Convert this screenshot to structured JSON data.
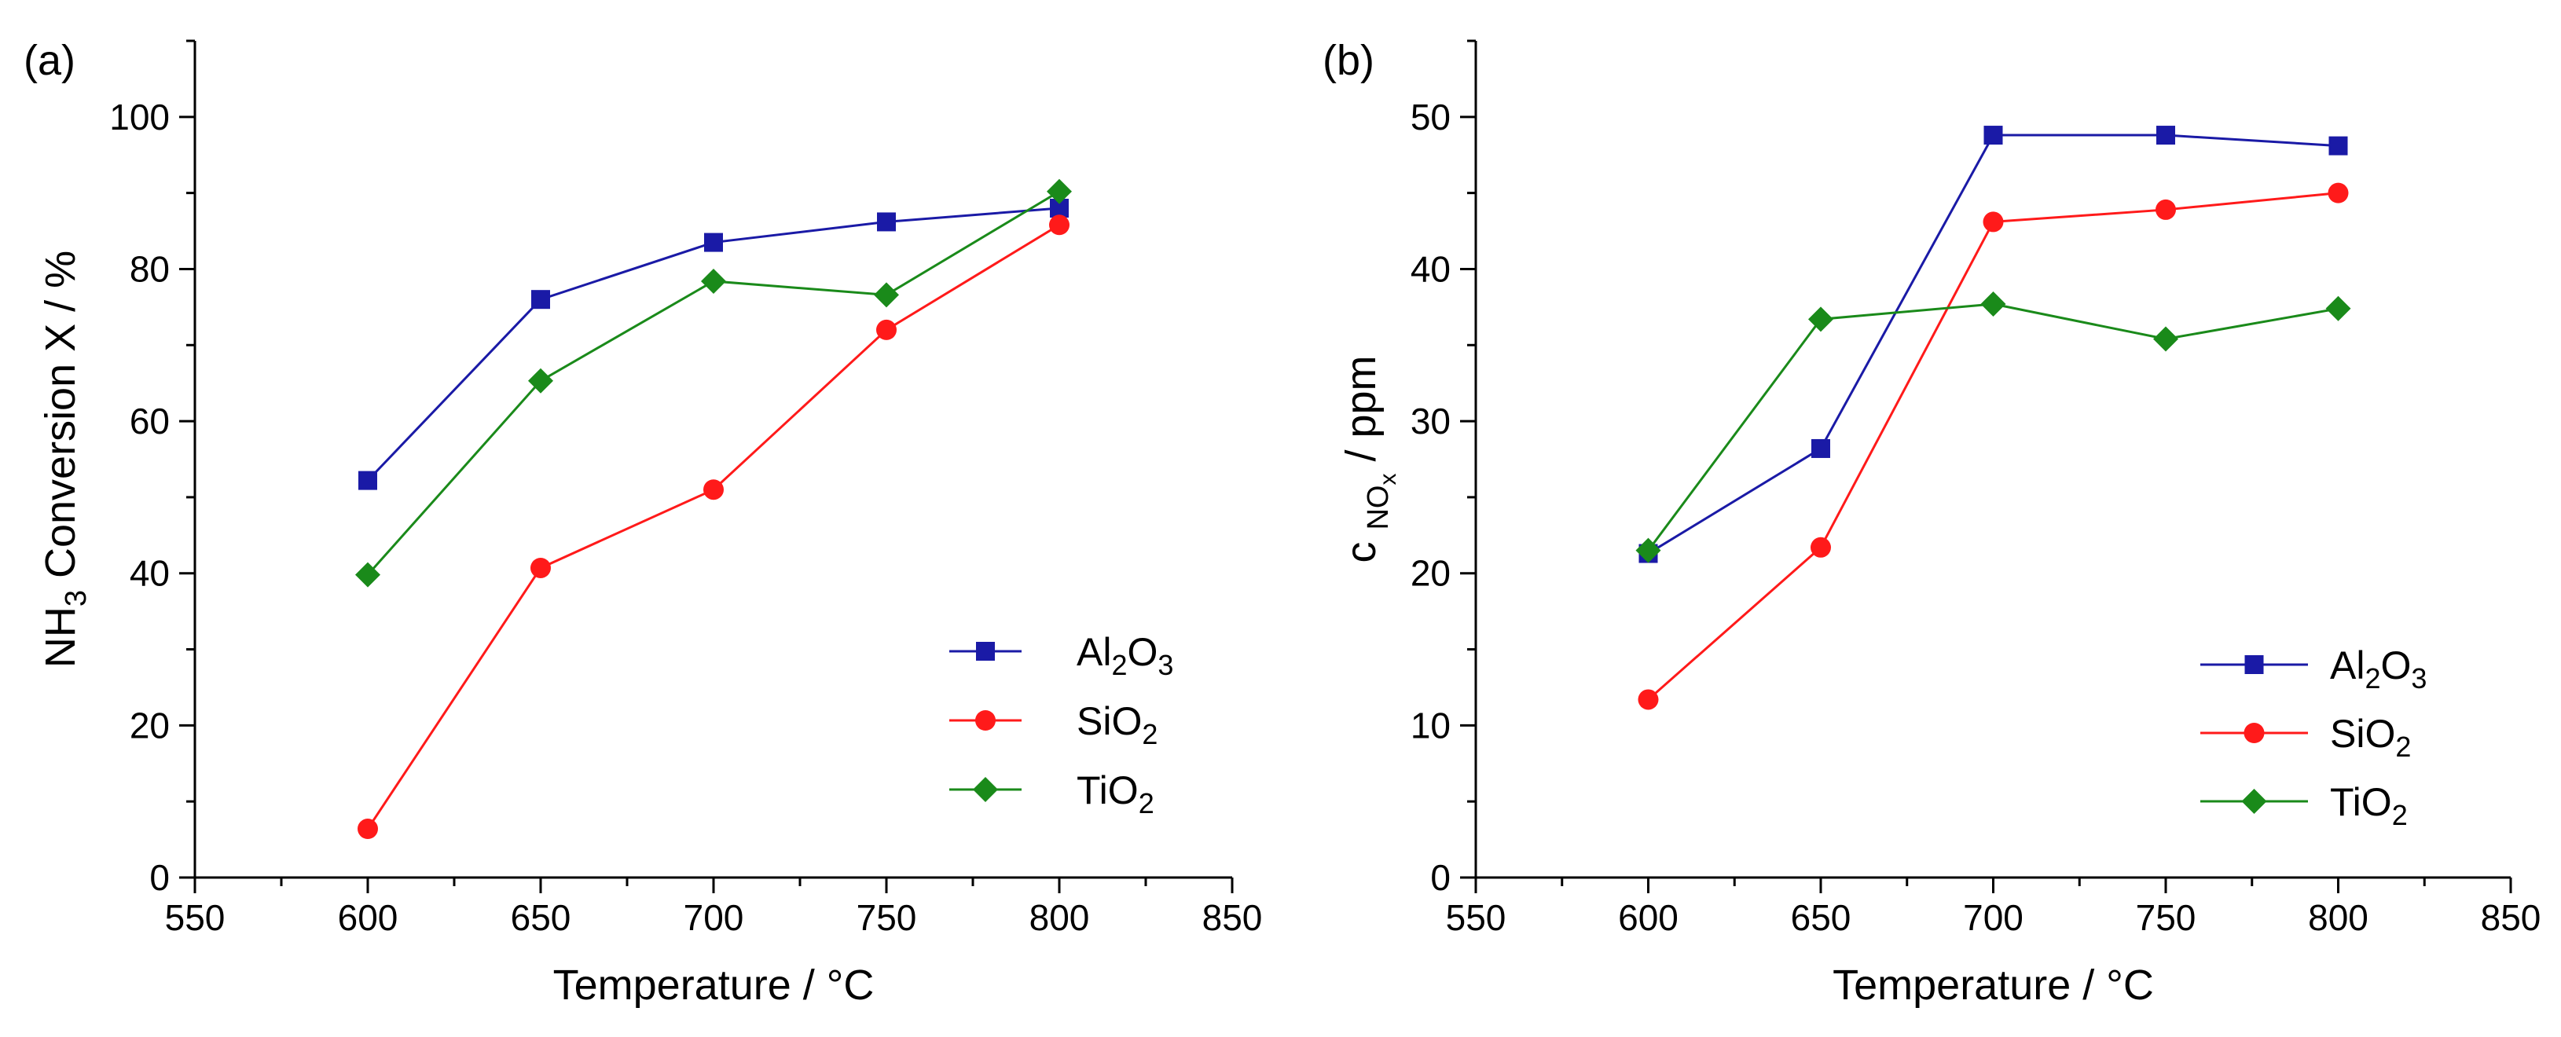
{
  "figure": {
    "series_style": [
      {
        "name": "Al2O3",
        "color": "#1a1aa6",
        "marker": "square"
      },
      {
        "name": "SiO2",
        "color": "#ff1a1a",
        "marker": "circle"
      },
      {
        "name": "TiO2",
        "color": "#1a8a1a",
        "marker": "diamond"
      }
    ]
  },
  "chart_data": [
    {
      "type": "line",
      "panel_label": "(a)",
      "title": "",
      "xlabel": "Temperature / °C",
      "ylabel": {
        "base": "NH",
        "sub": "3",
        "rest": " Conversion X / %"
      },
      "xlim": [
        550,
        850
      ],
      "ylim": [
        0,
        110
      ],
      "xticks": [
        550,
        600,
        650,
        700,
        750,
        800,
        850
      ],
      "yticks": [
        0,
        20,
        40,
        60,
        80,
        100
      ],
      "grid": false,
      "legend_position": "bottom-right",
      "x": [
        600,
        650,
        700,
        750,
        800
      ],
      "series": [
        {
          "name": "Al2O3",
          "label": {
            "parts": [
              [
                "Al",
                ""
              ],
              [
                "2",
                "sub"
              ],
              [
                "O",
                ""
              ],
              [
                "3",
                "sub"
              ]
            ]
          },
          "values": [
            52.2,
            76.0,
            83.5,
            86.2,
            88.0
          ]
        },
        {
          "name": "SiO2",
          "label": {
            "parts": [
              [
                "SiO",
                ""
              ],
              [
                "2",
                "sub"
              ]
            ]
          },
          "values": [
            6.4,
            40.7,
            51.0,
            72.0,
            85.8
          ]
        },
        {
          "name": "TiO2",
          "label": {
            "parts": [
              [
                "TiO",
                ""
              ],
              [
                "2",
                "sub"
              ]
            ]
          },
          "values": [
            39.8,
            65.3,
            78.4,
            76.6,
            90.2
          ]
        }
      ]
    },
    {
      "type": "line",
      "panel_label": "(b)",
      "title": "",
      "xlabel": "Temperature / °C",
      "ylabel": {
        "base": "c",
        "sub": "NO",
        "subsub": "x",
        "rest": " / ppm"
      },
      "xlim": [
        550,
        850
      ],
      "ylim": [
        0,
        55
      ],
      "xticks": [
        550,
        600,
        650,
        700,
        750,
        800,
        850
      ],
      "yticks": [
        0,
        10,
        20,
        30,
        40,
        50
      ],
      "grid": false,
      "legend_position": "bottom-right",
      "x": [
        600,
        650,
        700,
        750,
        800
      ],
      "series": [
        {
          "name": "Al2O3",
          "label": {
            "parts": [
              [
                "Al",
                ""
              ],
              [
                "2",
                "sub"
              ],
              [
                "O",
                ""
              ],
              [
                "3",
                "sub"
              ]
            ]
          },
          "values": [
            21.3,
            28.2,
            48.8,
            48.8,
            48.1
          ]
        },
        {
          "name": "SiO2",
          "label": {
            "parts": [
              [
                "SiO",
                ""
              ],
              [
                "2",
                "sub"
              ]
            ]
          },
          "values": [
            11.7,
            21.7,
            43.1,
            43.9,
            45.0
          ]
        },
        {
          "name": "TiO2",
          "label": {
            "parts": [
              [
                "TiO",
                ""
              ],
              [
                "2",
                "sub"
              ]
            ]
          },
          "values": [
            21.5,
            36.7,
            37.7,
            35.4,
            37.4
          ]
        }
      ]
    }
  ]
}
